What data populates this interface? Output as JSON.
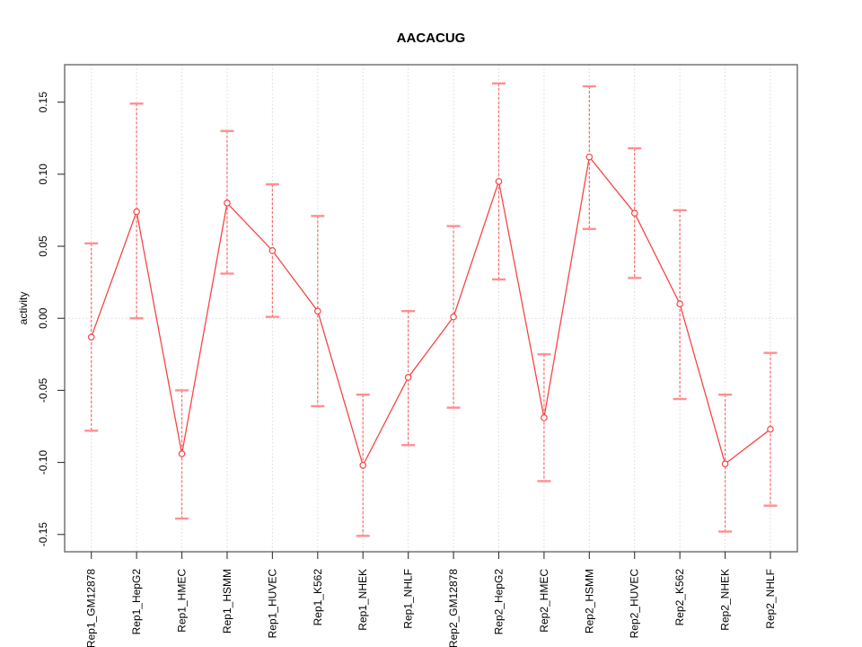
{
  "chart_data": {
    "type": "line",
    "title": "AACACUG",
    "xlabel": "",
    "ylabel": "activity",
    "legend_position": "none",
    "grid": "vertical dotted gridline at each category; dotted horizontal line at y=0",
    "categories": [
      "Rep1_GM12878",
      "Rep1_HepG2",
      "Rep1_HMEC",
      "Rep1_HSMM",
      "Rep1_HUVEC",
      "Rep1_K562",
      "Rep1_NHEK",
      "Rep1_NHLF",
      "Rep2_GM12878",
      "Rep2_HepG2",
      "Rep2_HMEC",
      "Rep2_HSMM",
      "Rep2_HUVEC",
      "Rep2_K562",
      "Rep2_NHEK",
      "Rep2_NHLF"
    ],
    "series": [
      {
        "name": "activity",
        "values": [
          -0.013,
          0.074,
          -0.094,
          0.08,
          0.047,
          0.005,
          -0.102,
          -0.041,
          0.001,
          0.095,
          -0.069,
          0.112,
          0.073,
          0.01,
          -0.101,
          -0.077
        ],
        "upper": [
          0.052,
          0.149,
          -0.05,
          0.13,
          0.093,
          0.071,
          -0.053,
          0.005,
          0.064,
          0.163,
          -0.025,
          0.161,
          0.118,
          0.075,
          -0.053,
          -0.024
        ],
        "lower": [
          -0.078,
          0.0,
          -0.139,
          0.031,
          0.001,
          -0.061,
          -0.151,
          -0.088,
          -0.062,
          0.027,
          -0.113,
          0.062,
          0.028,
          -0.056,
          -0.148,
          -0.13
        ]
      }
    ],
    "ylim": [
      -0.162,
      0.176
    ],
    "yticks": [
      0.15,
      0.1,
      0.05,
      0.0,
      -0.05,
      -0.1,
      -0.15
    ],
    "colors": {
      "line": "#f84545",
      "point": "#f84545",
      "point_fill": "#ffffff",
      "error_bar_stem": "#fb6b6b",
      "error_bar_cap": "#ff8f8f",
      "grid": "#d9d9d9",
      "frame": "#757575",
      "tick": "#333333",
      "text": "#000000",
      "background": "#ffffff"
    }
  }
}
